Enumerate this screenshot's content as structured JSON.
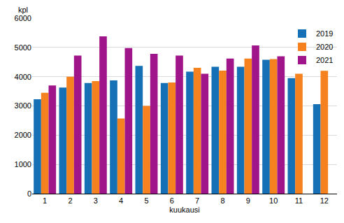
{
  "chart_data": {
    "type": "bar",
    "y_label": "kpl",
    "x_label": "kuukausi",
    "categories": [
      "1",
      "2",
      "3",
      "4",
      "5",
      "6",
      "7",
      "8",
      "9",
      "10",
      "11",
      "12"
    ],
    "series": [
      {
        "name": "2019",
        "color": "#1570b5",
        "values": [
          3230,
          3630,
          3780,
          3870,
          4370,
          3780,
          4170,
          4340,
          4340,
          4580,
          3950,
          3060
        ]
      },
      {
        "name": "2020",
        "color": "#f5821f",
        "values": [
          3450,
          4000,
          3850,
          2570,
          3000,
          3800,
          4300,
          4210,
          4620,
          4600,
          4100,
          4200
        ]
      },
      {
        "name": "2021",
        "color": "#a0168a",
        "values": [
          3700,
          4720,
          5380,
          4980,
          4780,
          4720,
          4100,
          4620,
          5070,
          4700,
          null,
          null
        ]
      }
    ],
    "ylim": [
      0,
      6000
    ],
    "yticks": [
      0,
      1000,
      2000,
      3000,
      4000,
      5000,
      6000
    ],
    "grid": true,
    "legend": "upper right"
  }
}
